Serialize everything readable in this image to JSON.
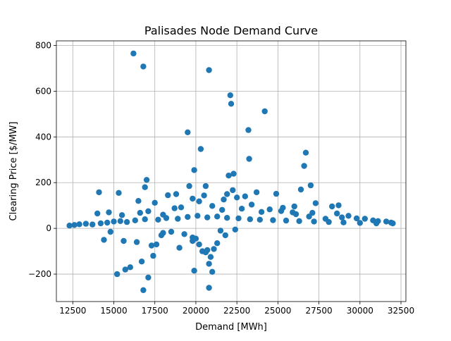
{
  "chart_data": {
    "type": "scatter",
    "title": "Palisades Node Demand Curve",
    "xlabel": "Demand [MWh]",
    "ylabel": "Clearing Price [$/MW]",
    "xlim": [
      11500,
      32800
    ],
    "ylim": [
      -320,
      820
    ],
    "xticks": [
      12500,
      15000,
      17500,
      20000,
      22500,
      25000,
      27500,
      30000,
      32500
    ],
    "yticks": [
      -200,
      0,
      200,
      400,
      600,
      800
    ],
    "grid": true,
    "series": [
      {
        "color": "#1f77b4",
        "points": [
          [
            16200,
            765
          ],
          [
            16800,
            708
          ],
          [
            20800,
            692
          ],
          [
            22100,
            582
          ],
          [
            22150,
            545
          ],
          [
            24200,
            512
          ],
          [
            23200,
            430
          ],
          [
            19500,
            420
          ],
          [
            20300,
            347
          ],
          [
            26700,
            331
          ],
          [
            23250,
            304
          ],
          [
            26600,
            273
          ],
          [
            19900,
            255
          ],
          [
            22000,
            231
          ],
          [
            22300,
            239
          ],
          [
            17000,
            212
          ],
          [
            27000,
            188
          ],
          [
            19600,
            185
          ],
          [
            20600,
            185
          ],
          [
            16900,
            180
          ],
          [
            22250,
            167
          ],
          [
            26400,
            170
          ],
          [
            14100,
            158
          ],
          [
            15300,
            155
          ],
          [
            23700,
            158
          ],
          [
            24900,
            151
          ],
          [
            18800,
            150
          ],
          [
            21900,
            150
          ],
          [
            18300,
            145
          ],
          [
            20500,
            144
          ],
          [
            23000,
            140
          ],
          [
            22500,
            135
          ],
          [
            21700,
            126
          ],
          [
            19800,
            130
          ],
          [
            16500,
            120
          ],
          [
            20200,
            118
          ],
          [
            17500,
            112
          ],
          [
            23400,
            104
          ],
          [
            26000,
            96
          ],
          [
            25300,
            90
          ],
          [
            27300,
            110
          ],
          [
            28300,
            96
          ],
          [
            28700,
            101
          ],
          [
            25900,
            70
          ],
          [
            26100,
            62
          ],
          [
            27100,
            68
          ],
          [
            28600,
            65
          ],
          [
            29300,
            55
          ],
          [
            14000,
            65
          ],
          [
            14700,
            70
          ],
          [
            15500,
            58
          ],
          [
            16600,
            68
          ],
          [
            17100,
            75
          ],
          [
            18000,
            60
          ],
          [
            18700,
            88
          ],
          [
            19100,
            92
          ],
          [
            21000,
            98
          ],
          [
            21600,
            81
          ],
          [
            22800,
            86
          ],
          [
            24000,
            72
          ],
          [
            24500,
            83
          ],
          [
            25200,
            76
          ],
          [
            26900,
            52
          ],
          [
            27900,
            42
          ],
          [
            28900,
            48
          ],
          [
            29800,
            44
          ],
          [
            30300,
            42
          ],
          [
            30800,
            35
          ],
          [
            31100,
            32
          ],
          [
            31600,
            30
          ],
          [
            31900,
            25
          ],
          [
            15200,
            -200
          ],
          [
            15700,
            -180
          ],
          [
            16000,
            -170
          ],
          [
            16700,
            -145
          ],
          [
            16800,
            -270
          ],
          [
            17100,
            -215
          ],
          [
            17400,
            -120
          ],
          [
            17300,
            -75
          ],
          [
            17600,
            -70
          ],
          [
            19000,
            -85
          ],
          [
            19800,
            -40
          ],
          [
            19800,
            -55
          ],
          [
            19900,
            -185
          ],
          [
            20200,
            -70
          ],
          [
            20400,
            -100
          ],
          [
            20600,
            -105
          ],
          [
            20700,
            -95
          ],
          [
            20800,
            -260
          ],
          [
            20800,
            -155
          ],
          [
            20900,
            -125
          ],
          [
            21000,
            -190
          ],
          [
            21100,
            -90
          ],
          [
            21300,
            -65
          ],
          [
            21800,
            -30
          ],
          [
            14400,
            -50
          ],
          [
            15600,
            -55
          ],
          [
            16400,
            -60
          ],
          [
            14800,
            -15
          ],
          [
            18000,
            -20
          ],
          [
            18500,
            -15
          ],
          [
            19300,
            -25
          ],
          [
            20000,
            -45
          ],
          [
            17900,
            -30
          ],
          [
            21500,
            -10
          ],
          [
            22400,
            -5
          ],
          [
            12300,
            12
          ],
          [
            12600,
            15
          ],
          [
            12900,
            18
          ],
          [
            13300,
            20
          ],
          [
            13700,
            17
          ],
          [
            14200,
            22
          ],
          [
            14600,
            25
          ],
          [
            15000,
            30
          ],
          [
            15400,
            32
          ],
          [
            15800,
            28
          ],
          [
            16300,
            35
          ],
          [
            16900,
            40
          ],
          [
            17700,
            38
          ],
          [
            18200,
            45
          ],
          [
            18900,
            42
          ],
          [
            19500,
            50
          ],
          [
            20100,
            55
          ],
          [
            20700,
            48
          ],
          [
            21300,
            52
          ],
          [
            21900,
            46
          ],
          [
            22600,
            44
          ],
          [
            23300,
            40
          ],
          [
            23900,
            38
          ],
          [
            24700,
            36
          ],
          [
            25500,
            34
          ],
          [
            26300,
            32
          ],
          [
            27200,
            30
          ],
          [
            28100,
            28
          ],
          [
            29000,
            26
          ],
          [
            30000,
            24
          ],
          [
            31000,
            22
          ],
          [
            32000,
            22
          ]
        ]
      }
    ]
  }
}
